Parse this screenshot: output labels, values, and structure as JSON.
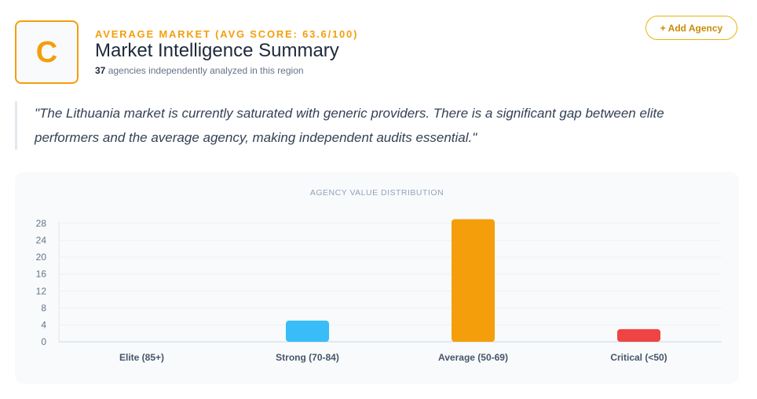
{
  "header": {
    "grade": "C",
    "kicker": "AVERAGE MARKET (AVG SCORE: 63.6/100)",
    "title": "Market Intelligence Summary",
    "agency_count": "37",
    "agency_count_suffix": "agencies independently analyzed in this region",
    "add_button_label": "+ Add Agency"
  },
  "quote": {
    "text": "\"The Lithuania market is currently saturated with generic providers. There is a significant gap between elite performers and the average agency, making independent audits essential.\""
  },
  "colors": {
    "accent": "#f59e0b",
    "strong": "#38bdf8",
    "average": "#f59e0b",
    "critical": "#ef4444"
  },
  "chart_data": {
    "type": "bar",
    "title": "AGENCY VALUE DISTRIBUTION",
    "categories": [
      "Elite (85+)",
      "Strong (70-84)",
      "Average (50-69)",
      "Critical (<50)"
    ],
    "values": [
      0,
      5,
      29,
      3
    ],
    "bar_colors": [
      "#a855f7",
      "#38bdf8",
      "#f59e0b",
      "#ef4444"
    ],
    "ylim": [
      0,
      28
    ],
    "yticks": [
      0,
      4,
      8,
      12,
      16,
      20,
      24,
      28
    ],
    "xlabel": "",
    "ylabel": "",
    "grid": true
  }
}
